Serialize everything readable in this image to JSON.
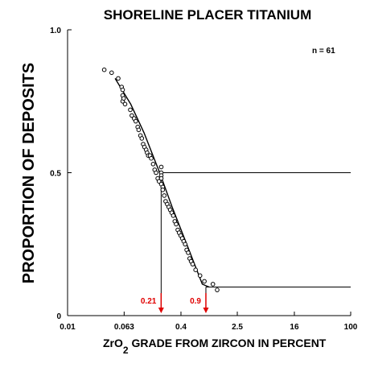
{
  "chart_data": {
    "type": "scatter",
    "title": "SHORELINE PLACER TITANIUM",
    "xlabel_main": "ZrO",
    "xlabel_sub": "2",
    "xlabel_rest": " GRADE FROM ZIRCON IN PERCENT",
    "ylabel": "PROPORTION OF DEPOSITS",
    "x_scale": "log",
    "xlim": [
      0.01,
      100
    ],
    "ylim": [
      0,
      1
    ],
    "x_ticks": [
      0.01,
      0.063,
      0.4,
      2.5,
      16,
      100
    ],
    "x_tick_labels": [
      "0.01",
      "0.063",
      "0.4",
      "2.5",
      "16",
      "100"
    ],
    "y_ticks": [
      0,
      0.5,
      1
    ],
    "y_tick_labels": [
      "0",
      "0.5",
      "1.0"
    ],
    "annotation": "n = 61",
    "marker": "circle",
    "percentile_lines": [
      {
        "proportion": 0.5,
        "grade": 0.21,
        "label": "0.21",
        "color": "#e00000"
      },
      {
        "proportion": 0.1,
        "grade": 0.9,
        "label": "0.9",
        "color": "#e00000"
      }
    ],
    "curve": {
      "x": [
        0.047,
        0.078,
        0.12,
        0.2,
        0.3,
        0.5,
        0.8,
        1.0
      ],
      "y": [
        0.83,
        0.74,
        0.64,
        0.5,
        0.38,
        0.24,
        0.11,
        0.1
      ]
    },
    "points": {
      "x": [
        0.033,
        0.042,
        0.052,
        0.058,
        0.06,
        0.06,
        0.06,
        0.062,
        0.065,
        0.077,
        0.081,
        0.087,
        0.092,
        0.098,
        0.101,
        0.107,
        0.112,
        0.117,
        0.122,
        0.129,
        0.133,
        0.138,
        0.146,
        0.152,
        0.162,
        0.17,
        0.178,
        0.188,
        0.196,
        0.211,
        0.211,
        0.211,
        0.211,
        0.211,
        0.221,
        0.221,
        0.232,
        0.243,
        0.256,
        0.269,
        0.282,
        0.296,
        0.311,
        0.327,
        0.342,
        0.36,
        0.377,
        0.397,
        0.417,
        0.437,
        0.459,
        0.482,
        0.506,
        0.531,
        0.557,
        0.585,
        0.645,
        0.744,
        0.857,
        1.13,
        1.3
      ],
      "y": [
        0.86,
        0.85,
        0.83,
        0.8,
        0.79,
        0.77,
        0.75,
        0.76,
        0.74,
        0.72,
        0.7,
        0.69,
        0.68,
        0.66,
        0.65,
        0.63,
        0.62,
        0.6,
        0.59,
        0.58,
        0.57,
        0.56,
        0.56,
        0.55,
        0.53,
        0.51,
        0.5,
        0.48,
        0.47,
        0.52,
        0.5,
        0.49,
        0.48,
        0.46,
        0.45,
        0.44,
        0.42,
        0.4,
        0.39,
        0.38,
        0.37,
        0.36,
        0.35,
        0.33,
        0.32,
        0.3,
        0.29,
        0.28,
        0.27,
        0.26,
        0.25,
        0.23,
        0.22,
        0.2,
        0.19,
        0.18,
        0.16,
        0.14,
        0.12,
        0.11,
        0.09
      ]
    }
  }
}
